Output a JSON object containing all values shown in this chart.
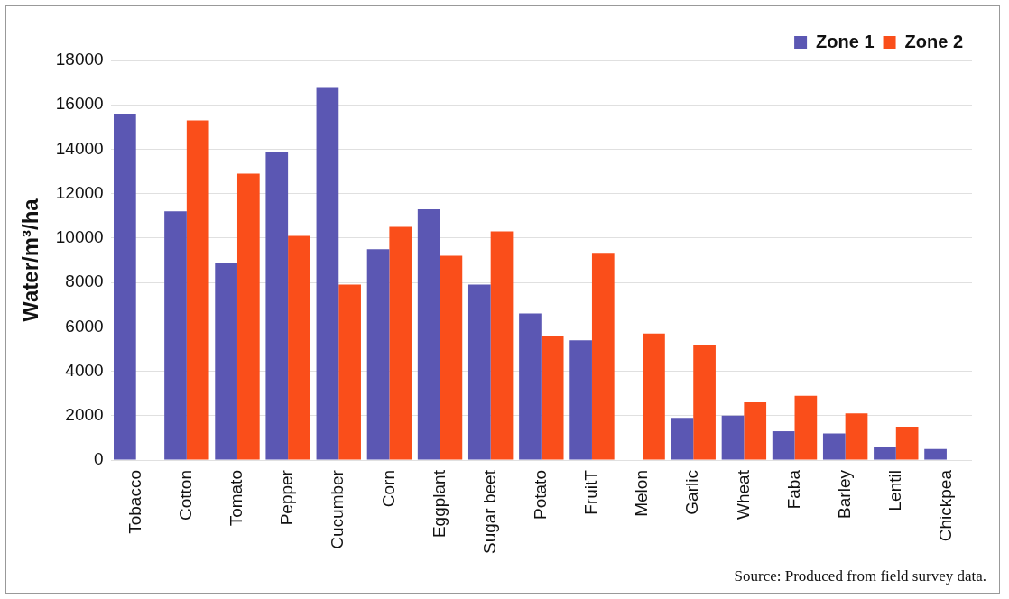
{
  "chart_data": {
    "type": "bar",
    "ylabel": "Water/m³/ha",
    "categories": [
      "Tobacco",
      "Cotton",
      "Tomato",
      "Pepper",
      "Cucumber",
      "Corn",
      "Eggplant",
      "Sugar beet",
      "Potato",
      "FruitT",
      "Melon",
      "Garlic",
      "Wheat",
      "Faba",
      "Barley",
      "Lentil",
      "Chickpea"
    ],
    "series": [
      {
        "name": "Zone 1",
        "color": "#5b57b3",
        "values": [
          15600,
          11200,
          8900,
          13900,
          16800,
          9500,
          11300,
          7900,
          6600,
          5400,
          null,
          1900,
          2000,
          1300,
          1200,
          600,
          500
        ]
      },
      {
        "name": "Zone 2",
        "color": "#fa4e1a",
        "values": [
          null,
          15300,
          12900,
          10100,
          7900,
          10500,
          9200,
          10300,
          5600,
          9300,
          5700,
          5200,
          2600,
          2900,
          2100,
          1500,
          null
        ]
      }
    ],
    "ylim": [
      0,
      18000
    ],
    "yticks": [
      0,
      2000,
      4000,
      6000,
      8000,
      10000,
      12000,
      14000,
      16000,
      18000
    ],
    "grid": "y",
    "legend": "top right",
    "annotations": [
      "Source: Produced from field survey data."
    ]
  }
}
